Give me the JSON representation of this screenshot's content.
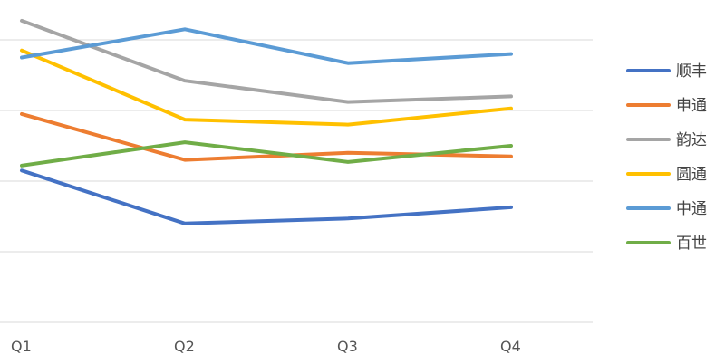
{
  "chart_data": {
    "type": "line",
    "categories": [
      "Q1",
      "Q2",
      "Q3",
      "Q4"
    ],
    "ylim": [
      0,
      4.5
    ],
    "grid": true,
    "legend_position": "right",
    "series": [
      {
        "name": "顺丰",
        "color": "#4472C4",
        "values": [
          2.15,
          1.4,
          1.47,
          1.63
        ]
      },
      {
        "name": "申通",
        "color": "#ED7D31",
        "values": [
          2.95,
          2.3,
          2.4,
          2.35
        ]
      },
      {
        "name": "韵达",
        "color": "#A5A5A5",
        "values": [
          4.27,
          3.42,
          3.12,
          3.2
        ]
      },
      {
        "name": "圆通",
        "color": "#FFC000",
        "values": [
          3.85,
          2.87,
          2.8,
          3.03
        ]
      },
      {
        "name": "中通",
        "color": "#5B9BD5",
        "values": [
          3.75,
          4.15,
          3.67,
          3.8
        ]
      },
      {
        "name": "百世",
        "color": "#70AD47",
        "values": [
          2.22,
          2.55,
          2.27,
          2.5
        ]
      }
    ]
  }
}
